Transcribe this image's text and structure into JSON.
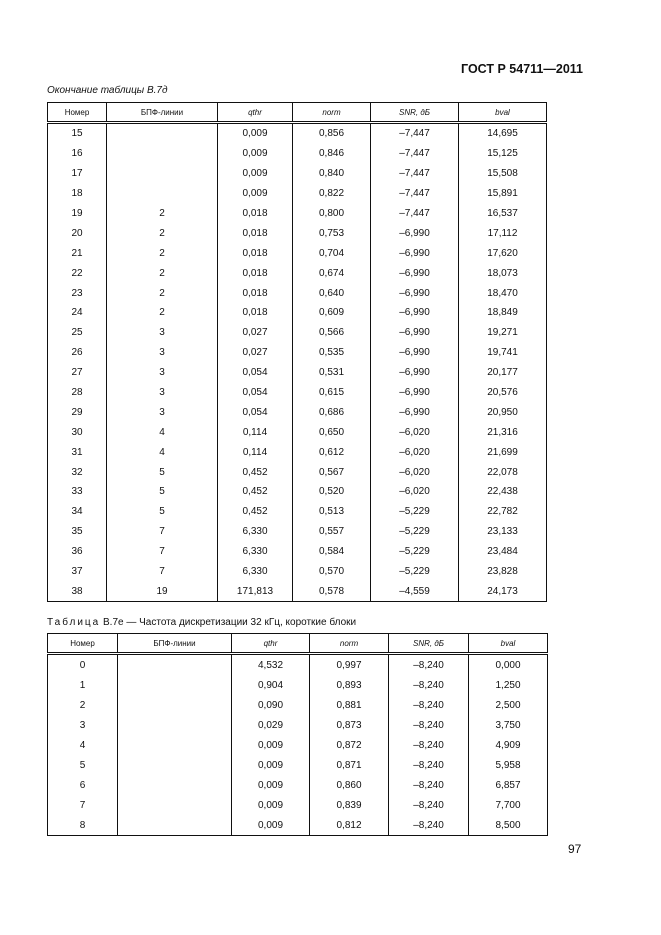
{
  "header": {
    "standard": "ГОСТ Р 54711—2011"
  },
  "table1": {
    "caption": "Окончание таблицы В.7д",
    "columns": [
      "Номер",
      "БПФ-линии",
      "qthr",
      "norm",
      "SNR, дБ",
      "bval"
    ],
    "rows": [
      [
        "15",
        "",
        "0,009",
        "0,856",
        "–7,447",
        "14,695"
      ],
      [
        "16",
        "",
        "0,009",
        "0,846",
        "–7,447",
        "15,125"
      ],
      [
        "17",
        "",
        "0,009",
        "0,840",
        "–7,447",
        "15,508"
      ],
      [
        "18",
        "",
        "0,009",
        "0,822",
        "–7,447",
        "15,891"
      ],
      [
        "19",
        "2",
        "0,018",
        "0,800",
        "–7,447",
        "16,537"
      ],
      [
        "20",
        "2",
        "0,018",
        "0,753",
        "–6,990",
        "17,112"
      ],
      [
        "21",
        "2",
        "0,018",
        "0,704",
        "–6,990",
        "17,620"
      ],
      [
        "22",
        "2",
        "0,018",
        "0,674",
        "–6,990",
        "18,073"
      ],
      [
        "23",
        "2",
        "0,018",
        "0,640",
        "–6,990",
        "18,470"
      ],
      [
        "24",
        "2",
        "0,018",
        "0,609",
        "–6,990",
        "18,849"
      ],
      [
        "25",
        "3",
        "0,027",
        "0,566",
        "–6,990",
        "19,271"
      ],
      [
        "26",
        "3",
        "0,027",
        "0,535",
        "–6,990",
        "19,741"
      ],
      [
        "27",
        "3",
        "0,054",
        "0,531",
        "–6,990",
        "20,177"
      ],
      [
        "28",
        "3",
        "0,054",
        "0,615",
        "–6,990",
        "20,576"
      ],
      [
        "29",
        "3",
        "0,054",
        "0,686",
        "–6,990",
        "20,950"
      ],
      [
        "30",
        "4",
        "0,114",
        "0,650",
        "–6,020",
        "21,316"
      ],
      [
        "31",
        "4",
        "0,114",
        "0,612",
        "–6,020",
        "21,699"
      ],
      [
        "32",
        "5",
        "0,452",
        "0,567",
        "–6,020",
        "22,078"
      ],
      [
        "33",
        "5",
        "0,452",
        "0,520",
        "–6,020",
        "22,438"
      ],
      [
        "34",
        "5",
        "0,452",
        "0,513",
        "–5,229",
        "22,782"
      ],
      [
        "35",
        "7",
        "6,330",
        "0,557",
        "–5,229",
        "23,133"
      ],
      [
        "36",
        "7",
        "6,330",
        "0,584",
        "–5,229",
        "23,484"
      ],
      [
        "37",
        "7",
        "6,330",
        "0,570",
        "–5,229",
        "23,828"
      ],
      [
        "38",
        "19",
        "171,813",
        "0,578",
        "–4,559",
        "24,173"
      ]
    ]
  },
  "table2": {
    "caption_prefix": "Таблица",
    "caption_text": "В.7е — Частота дискретизации 32 кГц, короткие блоки",
    "columns": [
      "Номер",
      "БПФ-линии",
      "qthr",
      "norm",
      "SNR, дБ",
      "bval"
    ],
    "rows": [
      [
        "0",
        "",
        "4,532",
        "0,997",
        "–8,240",
        "0,000"
      ],
      [
        "1",
        "",
        "0,904",
        "0,893",
        "–8,240",
        "1,250"
      ],
      [
        "2",
        "",
        "0,090",
        "0,881",
        "–8,240",
        "2,500"
      ],
      [
        "3",
        "",
        "0,029",
        "0,873",
        "–8,240",
        "3,750"
      ],
      [
        "4",
        "",
        "0,009",
        "0,872",
        "–8,240",
        "4,909"
      ],
      [
        "5",
        "",
        "0,009",
        "0,871",
        "–8,240",
        "5,958"
      ],
      [
        "6",
        "",
        "0,009",
        "0,860",
        "–8,240",
        "6,857"
      ],
      [
        "7",
        "",
        "0,009",
        "0,839",
        "–8,240",
        "7,700"
      ],
      [
        "8",
        "",
        "0,009",
        "0,812",
        "–8,240",
        "8,500"
      ]
    ]
  },
  "footer": {
    "page_number": "97"
  }
}
